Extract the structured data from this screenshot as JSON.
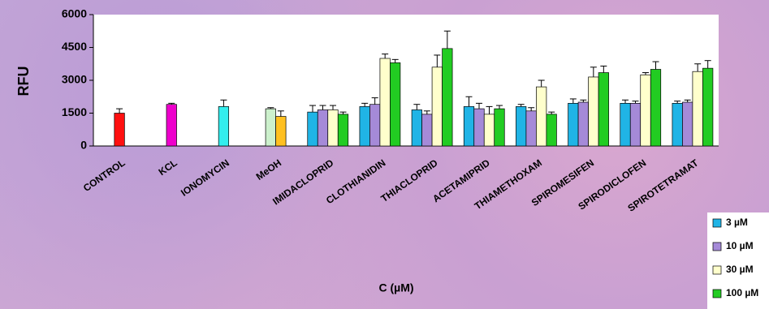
{
  "chart_data": {
    "type": "bar",
    "y_label": "RFU",
    "x_label": "C (µM)",
    "categories": [
      "CONTROL",
      "KCL",
      "IONOMYCIN",
      "MeOH",
      "IMIDACLOPRID",
      "CLOTHIANIDIN",
      "THIACLOPRID",
      "ACETAMIPRID",
      "THIAMETHOXAM",
      "SPIROMESIFEN",
      "SPIRODICLOFEN",
      "SPIROTETRAMAT"
    ],
    "series": [
      {
        "name": "3 µM",
        "color": "#20b4e6",
        "values": [
          null,
          null,
          null,
          null,
          1550,
          1800,
          1650,
          1800,
          1800,
          1950,
          1950,
          1950
        ],
        "errors": [
          null,
          null,
          null,
          null,
          300,
          150,
          250,
          450,
          100,
          200,
          150,
          100
        ]
      },
      {
        "name": "10 µM",
        "color": "#a58ad8",
        "values": [
          null,
          null,
          null,
          null,
          1650,
          1900,
          1450,
          1700,
          1600,
          2000,
          1950,
          2000
        ],
        "errors": [
          null,
          null,
          null,
          null,
          200,
          300,
          150,
          250,
          150,
          100,
          100,
          100
        ]
      },
      {
        "name": "30 µM",
        "color": "#ffffcc",
        "values": [
          null,
          null,
          null,
          null,
          1650,
          4000,
          3600,
          1450,
          2700,
          3150,
          3250,
          3400
        ],
        "errors": [
          null,
          null,
          null,
          null,
          200,
          200,
          550,
          350,
          300,
          450,
          100,
          350
        ]
      },
      {
        "name": "100 µM",
        "color": "#22cc22",
        "values": [
          null,
          null,
          null,
          null,
          1450,
          3800,
          4450,
          1700,
          1450,
          3350,
          3500,
          3550
        ],
        "errors": [
          null,
          null,
          null,
          null,
          100,
          150,
          800,
          150,
          100,
          300,
          350,
          350
        ]
      },
      {
        "color": "#ff1010",
        "values": [
          1500,
          null,
          null,
          null,
          null,
          null,
          null,
          null,
          null,
          null,
          null,
          null
        ],
        "errors": [
          200,
          null,
          null,
          null,
          null,
          null,
          null,
          null,
          null,
          null,
          null,
          null
        ]
      },
      {
        "color": "#ee00cc",
        "values": [
          null,
          1900,
          null,
          null,
          null,
          null,
          null,
          null,
          null,
          null,
          null,
          null
        ],
        "errors": [
          null,
          50,
          null,
          null,
          null,
          null,
          null,
          null,
          null,
          null,
          null,
          null
        ]
      },
      {
        "color": "#33eeee",
        "values": [
          null,
          null,
          1800,
          null,
          null,
          null,
          null,
          null,
          null,
          null,
          null,
          null
        ],
        "errors": [
          null,
          null,
          300,
          null,
          null,
          null,
          null,
          null,
          null,
          null,
          null,
          null
        ]
      },
      {
        "color": "#ccf0cc",
        "values": [
          null,
          null,
          null,
          1700,
          null,
          null,
          null,
          null,
          null,
          null,
          null,
          null
        ],
        "errors": [
          null,
          null,
          null,
          50,
          null,
          null,
          null,
          null,
          null,
          null,
          null,
          null
        ]
      },
      {
        "color": "#ffc020",
        "values": [
          null,
          null,
          null,
          1350,
          null,
          null,
          null,
          null,
          null,
          null,
          null,
          null
        ],
        "errors": [
          null,
          null,
          null,
          250,
          null,
          null,
          null,
          null,
          null,
          null,
          null,
          null
        ]
      }
    ],
    "ylim": [
      0,
      6000
    ],
    "yticks": [
      0,
      1500,
      3000,
      4500,
      6000
    ],
    "legend": "bottom-right"
  }
}
